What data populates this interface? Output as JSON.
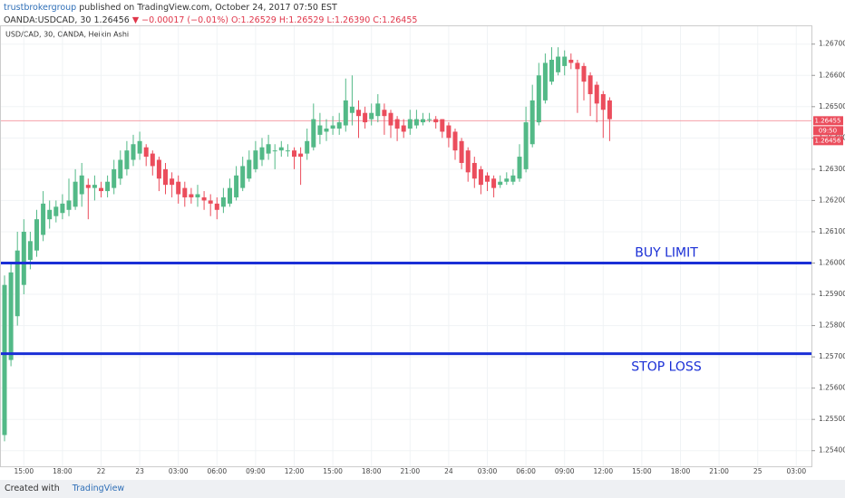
{
  "header": {
    "author": "trustbrokergroup",
    "published": "published on TradingView.com, October 24, 2017 07:50 EST",
    "symbol": "OANDA:USDCAD, 30",
    "last": "1.26456",
    "change": "▼ −0.00017 (−0.01%)",
    "ohlc": "O:1.26529 H:1.26529 L:1.26390 C:1.26455"
  },
  "footer": {
    "created": "Created with",
    "brand": "TradingView"
  },
  "chart_data": {
    "type": "candlestick",
    "title": "USD/CAD, 30, OANDA, Heikin Ashi",
    "up_color": "#53b987",
    "down_color": "#eb4d5c",
    "ylim": [
      1.2535,
      1.2676
    ],
    "yticks": [
      {
        "value": 1.254,
        "label": "1.25400"
      },
      {
        "value": 1.255,
        "label": "1.25500"
      },
      {
        "value": 1.256,
        "label": "1.25600"
      },
      {
        "value": 1.257,
        "label": "1.25700"
      },
      {
        "value": 1.258,
        "label": "1.25800"
      },
      {
        "value": 1.259,
        "label": "1.25900"
      },
      {
        "value": 1.26,
        "label": "1.26000"
      },
      {
        "value": 1.261,
        "label": "1.26100"
      },
      {
        "value": 1.262,
        "label": "1.26200"
      },
      {
        "value": 1.263,
        "label": "1.26300"
      },
      {
        "value": 1.264,
        "label": "1.26400"
      },
      {
        "value": 1.265,
        "label": "1.26500"
      },
      {
        "value": 1.266,
        "label": "1.26600"
      },
      {
        "value": 1.267,
        "label": "1.26700"
      }
    ],
    "xtick_labels": [
      "15:00",
      "18:00",
      "22",
      "23",
      "03:00",
      "06:00",
      "09:00",
      "12:00",
      "15:00",
      "18:00",
      "21:00",
      "24",
      "03:00",
      "06:00",
      "09:00",
      "12:00",
      "15:00",
      "18:00",
      "21:00",
      "25",
      "03:00"
    ],
    "open": [
      1.2545,
      1.2569,
      1.2583,
      1.2593,
      1.2601,
      1.2604,
      1.2609,
      1.2614,
      1.2615,
      1.2616,
      1.2617,
      1.2618,
      1.2622,
      1.2625,
      1.2624,
      1.2624,
      1.2623,
      1.2624,
      1.2627,
      1.263,
      1.2633,
      1.2635,
      1.2637,
      1.2635,
      1.2633,
      1.263,
      1.2627,
      1.2626,
      1.2624,
      1.2622,
      1.2621,
      1.2621,
      1.262,
      1.2619,
      1.2618,
      1.2619,
      1.2621,
      1.2624,
      1.2627,
      1.263,
      1.2633,
      1.2635,
      1.2636,
      1.2636,
      1.2636,
      1.2636,
      1.2635,
      1.2635,
      1.2637,
      1.2641,
      1.2642,
      1.2643,
      1.2643,
      1.2644,
      1.2648,
      1.2649,
      1.2648,
      1.2646,
      1.2647,
      1.2649,
      1.2648,
      1.2646,
      1.2644,
      1.2643,
      1.2644,
      1.2645,
      1.2646,
      1.2646,
      1.2646,
      1.2644,
      1.2642,
      1.2639,
      1.2636,
      1.2632,
      1.263,
      1.2628,
      1.2627,
      1.2625,
      1.2626,
      1.2626,
      1.2627,
      1.263,
      1.2638,
      1.2645,
      1.2652,
      1.2658,
      1.2661,
      1.2663,
      1.2665,
      1.2664,
      1.2663,
      1.266,
      1.2657,
      1.2654,
      1.2652
    ],
    "high": [
      1.2596,
      1.26,
      1.261,
      1.2614,
      1.261,
      1.2617,
      1.2623,
      1.262,
      1.262,
      1.2622,
      1.2627,
      1.263,
      1.2632,
      1.2627,
      1.2628,
      1.2626,
      1.2628,
      1.2633,
      1.2636,
      1.2639,
      1.2641,
      1.2642,
      1.2638,
      1.2636,
      1.2634,
      1.2632,
      1.2629,
      1.2628,
      1.2626,
      1.2624,
      1.2625,
      1.2623,
      1.2622,
      1.2621,
      1.2624,
      1.2627,
      1.2631,
      1.2634,
      1.2636,
      1.2639,
      1.264,
      1.2641,
      1.2638,
      1.2639,
      1.2638,
      1.2637,
      1.2637,
      1.2643,
      1.2651,
      1.2648,
      1.2646,
      1.2647,
      1.2648,
      1.2659,
      1.266,
      1.2652,
      1.265,
      1.2651,
      1.2654,
      1.2651,
      1.2649,
      1.2647,
      1.2646,
      1.2649,
      1.2649,
      1.2648,
      1.2648,
      1.2647,
      1.2646,
      1.2645,
      1.2643,
      1.264,
      1.2637,
      1.2634,
      1.2631,
      1.2629,
      1.2628,
      1.2628,
      1.2629,
      1.263,
      1.2638,
      1.265,
      1.2657,
      1.2664,
      1.2667,
      1.2669,
      1.2669,
      1.2668,
      1.2667,
      1.2665,
      1.2664,
      1.2661,
      1.2658,
      1.2655,
      1.2653
    ],
    "low": [
      1.2543,
      1.2567,
      1.258,
      1.259,
      1.2598,
      1.2602,
      1.2607,
      1.2611,
      1.2613,
      1.2614,
      1.2615,
      1.2617,
      1.2618,
      1.2614,
      1.262,
      1.2621,
      1.2621,
      1.2622,
      1.2625,
      1.2628,
      1.2631,
      1.2633,
      1.2631,
      1.2628,
      1.2623,
      1.2622,
      1.2621,
      1.2619,
      1.2618,
      1.2619,
      1.2618,
      1.2617,
      1.2615,
      1.2614,
      1.2616,
      1.2618,
      1.262,
      1.2623,
      1.2626,
      1.2629,
      1.2631,
      1.2633,
      1.263,
      1.2634,
      1.2634,
      1.263,
      1.2625,
      1.2633,
      1.2636,
      1.2638,
      1.2639,
      1.2641,
      1.2641,
      1.2642,
      1.2644,
      1.264,
      1.2643,
      1.2644,
      1.2645,
      1.2641,
      1.264,
      1.2639,
      1.264,
      1.2641,
      1.2643,
      1.2644,
      1.2645,
      1.2643,
      1.264,
      1.2637,
      1.2633,
      1.263,
      1.2626,
      1.2624,
      1.2622,
      1.2623,
      1.2621,
      1.2624,
      1.2625,
      1.2625,
      1.2626,
      1.2629,
      1.2637,
      1.2644,
      1.2651,
      1.2657,
      1.266,
      1.266,
      1.2662,
      1.2648,
      1.2652,
      1.2647,
      1.2645,
      1.264,
      1.2639
    ],
    "close": [
      1.2593,
      1.2597,
      1.2604,
      1.261,
      1.2607,
      1.2614,
      1.2619,
      1.2617,
      1.2618,
      1.2619,
      1.262,
      1.2626,
      1.2628,
      1.2624,
      1.2625,
      1.2623,
      1.2626,
      1.263,
      1.2633,
      1.2636,
      1.2638,
      1.2639,
      1.2634,
      1.2631,
      1.2627,
      1.2625,
      1.2625,
      1.2622,
      1.2621,
      1.2621,
      1.2622,
      1.262,
      1.2619,
      1.2617,
      1.2621,
      1.2624,
      1.2628,
      1.2631,
      1.2633,
      1.2636,
      1.2637,
      1.2638,
      1.2636,
      1.2637,
      1.2636,
      1.2634,
      1.2634,
      1.2639,
      1.2646,
      1.2644,
      1.2643,
      1.2644,
      1.2645,
      1.2652,
      1.265,
      1.2647,
      1.2645,
      1.2648,
      1.2651,
      1.2647,
      1.2644,
      1.2643,
      1.2642,
      1.2646,
      1.2646,
      1.2646,
      1.2646,
      1.2645,
      1.2642,
      1.264,
      1.2636,
      1.2632,
      1.2629,
      1.2627,
      1.2625,
      1.2626,
      1.2624,
      1.2626,
      1.2627,
      1.2628,
      1.2634,
      1.2645,
      1.2652,
      1.266,
      1.2664,
      1.2665,
      1.2666,
      1.2666,
      1.2664,
      1.2662,
      1.2658,
      1.2654,
      1.2651,
      1.2649,
      1.2646
    ],
    "levels": [
      {
        "label": "BUY LIMIT",
        "value": 1.26
      },
      {
        "label": "STOP LOSS",
        "value": 1.2571
      }
    ],
    "level_color": "#1a2fd6",
    "last_price": {
      "value": 1.26455,
      "label": "1.26455",
      "countdown": "09:50",
      "bid": "1.26456"
    }
  }
}
